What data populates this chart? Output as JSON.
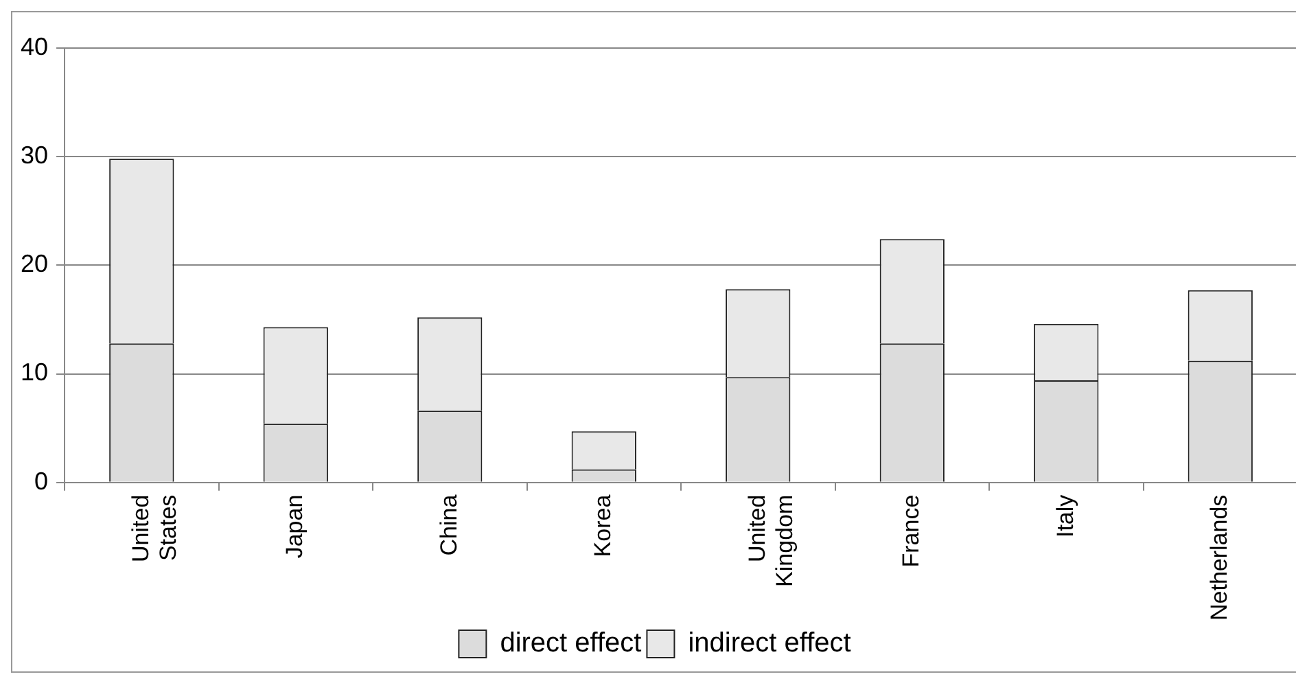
{
  "chart_data": {
    "type": "bar",
    "stacked": true,
    "categories": [
      "United States",
      "Japan",
      "China",
      "Korea",
      "United Kingdom",
      "France",
      "Italy",
      "Netherlands"
    ],
    "series": [
      {
        "name": "direct effect",
        "color": "#dcdcdc",
        "values": [
          12.8,
          5.4,
          6.6,
          1.2,
          9.7,
          12.8,
          9.4,
          11.2
        ]
      },
      {
        "name": "indirect effect",
        "color": "#e8e8e8",
        "values": [
          17.0,
          8.9,
          8.6,
          3.5,
          8.1,
          9.6,
          5.2,
          6.5
        ]
      }
    ],
    "ylim": [
      0,
      40
    ],
    "yticks": [
      0,
      10,
      20,
      30,
      40
    ],
    "grid": "y",
    "legend": "bottom"
  }
}
